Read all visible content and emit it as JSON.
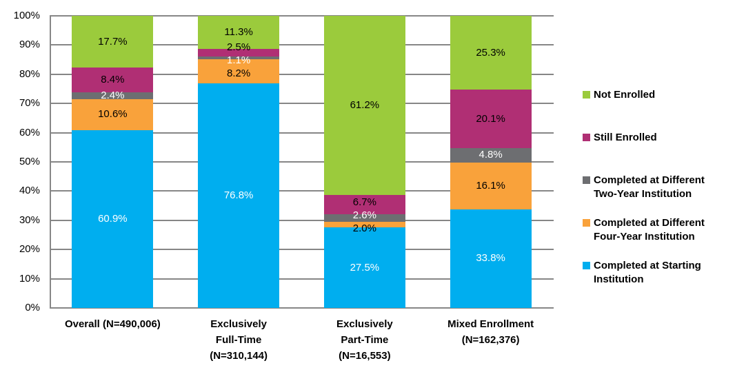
{
  "chart_data": {
    "type": "bar",
    "subtype": "stacked-100-percent-column",
    "title": "",
    "xlabel": "",
    "ylabel": "",
    "categories": [
      {
        "label": "Overall (N=490,006)",
        "lines": [
          "Overall (N=490,006)"
        ]
      },
      {
        "label": "Exclusively Full-Time (N=310,144)",
        "lines": [
          "Exclusively",
          "Full-Time",
          "(N=310,144)"
        ]
      },
      {
        "label": "Exclusively Part-Time (N=16,553)",
        "lines": [
          "Exclusively",
          "Part-Time",
          "(N=16,553)"
        ]
      },
      {
        "label": "Mixed Enrollment (N=162,376)",
        "lines": [
          "Mixed Enrollment",
          "(N=162,376)"
        ]
      }
    ],
    "series": [
      {
        "name": "Completed at Starting Institution",
        "color": "#00AEEF",
        "label_color": "#FFFFFF",
        "values": [
          60.9,
          76.8,
          27.5,
          33.8
        ]
      },
      {
        "name": "Completed at Different Four-Year Institution",
        "color": "#F9A23B",
        "label_color": "#000000",
        "values": [
          10.6,
          8.2,
          2.0,
          16.1
        ]
      },
      {
        "name": "Completed at Different Two-Year Institution",
        "color": "#6D6E71",
        "label_color": "#FFFFFF",
        "values": [
          2.4,
          1.1,
          2.6,
          4.8
        ]
      },
      {
        "name": "Still Enrolled",
        "color": "#B02F74",
        "label_color": "#000000",
        "values": [
          8.4,
          2.5,
          6.7,
          20.1
        ]
      },
      {
        "name": "Not Enrolled",
        "color": "#9BCB3C",
        "label_color": "#000000",
        "values": [
          17.7,
          11.3,
          61.2,
          25.3
        ]
      }
    ],
    "y_axis": {
      "min": 0,
      "max": 100,
      "tick_step": 10,
      "ticks": [
        "0%",
        "10%",
        "20%",
        "30%",
        "40%",
        "50%",
        "60%",
        "70%",
        "80%",
        "90%",
        "100%"
      ],
      "grid": true
    },
    "legend": {
      "position": "right",
      "items": [
        "Not Enrolled",
        "Still Enrolled",
        "Completed at Different Two-Year Institution",
        "Completed at Different Four-Year Institution",
        "Completed at Starting Institution"
      ]
    },
    "colors": {
      "gridline": "#868686",
      "axis": "#868686",
      "axis_text": "#000000",
      "background": "#FFFFFF"
    }
  }
}
